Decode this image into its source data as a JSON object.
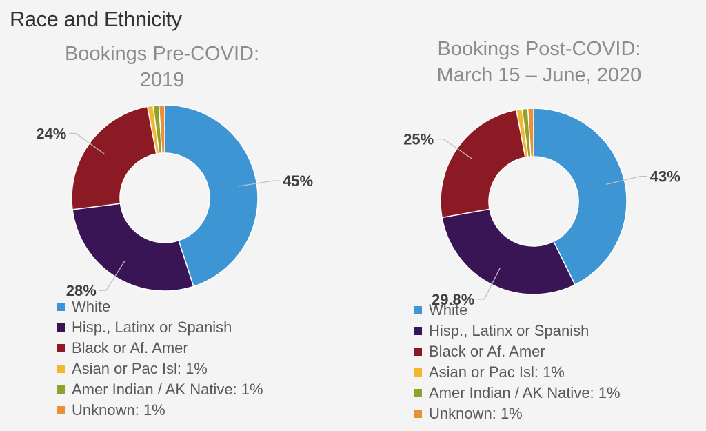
{
  "page": {
    "title": "Race and Ethnicity"
  },
  "colors": {
    "white": "#3d95d4",
    "hispanic": "#3a1556",
    "black": "#8b1a24",
    "asian": "#f5b731",
    "amer_indian": "#8fa32a",
    "unknown": "#e8903a"
  },
  "chart_data": [
    {
      "type": "pie",
      "title_lines": [
        "Bookings Pre-COVID:",
        "2019"
      ],
      "legend": [
        "White",
        "Hisp., Latinx or Spanish",
        "Black or Af. Amer",
        "Asian or Pac Isl: 1%",
        "Amer Indian / AK Native: 1%",
        "Unknown: 1%"
      ],
      "slices": [
        {
          "category": "White",
          "value": 45,
          "label": "45%",
          "color_key": "white"
        },
        {
          "category": "Hisp., Latinx or Spanish",
          "value": 28,
          "label": "28%",
          "color_key": "hispanic"
        },
        {
          "category": "Black or Af. Amer",
          "value": 24,
          "label": "24%",
          "color_key": "black"
        },
        {
          "category": "Asian or Pac Isl",
          "value": 1,
          "label": "",
          "color_key": "asian"
        },
        {
          "category": "Amer Indian / AK Native",
          "value": 1,
          "label": "",
          "color_key": "amer_indian"
        },
        {
          "category": "Unknown",
          "value": 1,
          "label": "",
          "color_key": "unknown"
        }
      ],
      "legend_placement": "bottom"
    },
    {
      "type": "pie",
      "title_lines": [
        "Bookings Post-COVID:",
        "March 15 – June, 2020"
      ],
      "legend": [
        "White",
        "Hisp., Latinx or Spanish",
        "Black or Af. Amer",
        "Asian or Pac Isl: 1%",
        "Amer Indian / AK Native: 1%",
        "Unknown: 1%"
      ],
      "slices": [
        {
          "category": "White",
          "value": 43,
          "label": "43%",
          "color_key": "white"
        },
        {
          "category": "Hisp., Latinx or Spanish",
          "value": 29.8,
          "label": "29.8%",
          "color_key": "hispanic"
        },
        {
          "category": "Black or Af. Amer",
          "value": 25,
          "label": "25%",
          "color_key": "black"
        },
        {
          "category": "Asian or Pac Isl",
          "value": 1,
          "label": "",
          "color_key": "asian"
        },
        {
          "category": "Amer Indian / AK Native",
          "value": 1,
          "label": "",
          "color_key": "amer_indian"
        },
        {
          "category": "Unknown",
          "value": 1,
          "label": "",
          "color_key": "unknown"
        }
      ],
      "legend_placement": "bottom"
    }
  ]
}
